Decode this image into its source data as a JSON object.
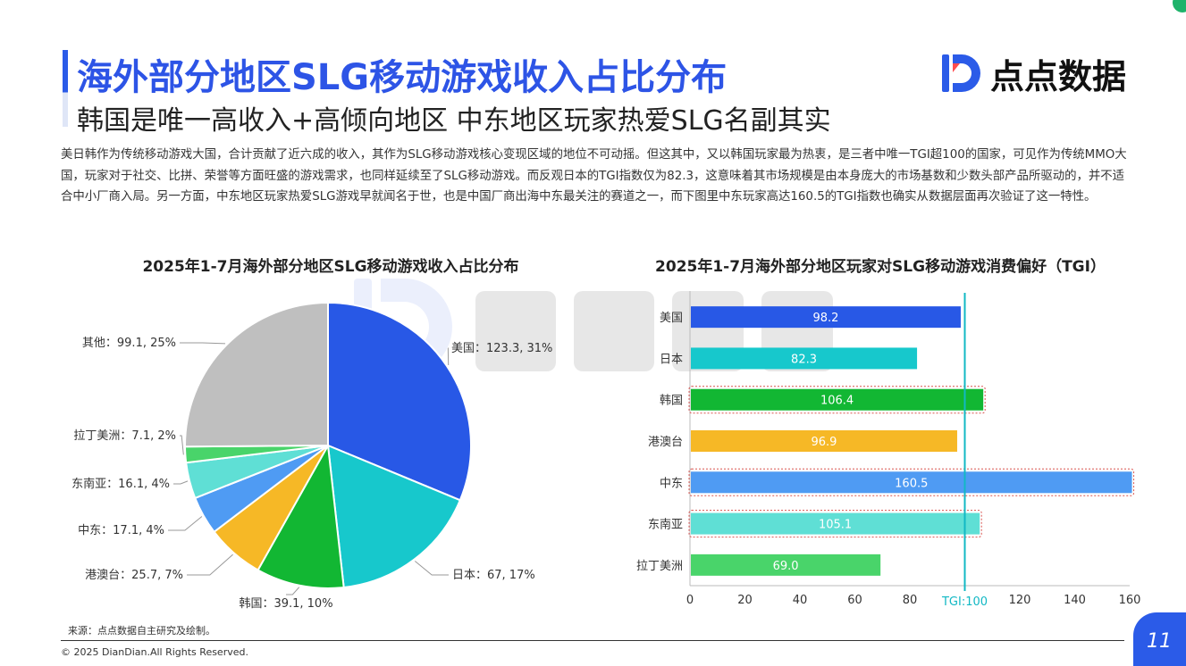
{
  "header": {
    "title": "海外部分地区SLG移动游戏收入占比分布",
    "subtitle": "韩国是唯一高收入+高倾向地区 中东地区玩家热爱SLG名副其实",
    "logo_text": "点点数据"
  },
  "paragraph": "美日韩作为传统移动游戏大国，合计贡献了近六成的收入，其作为SLG移动游戏核心变现区域的地位不可动摇。但这其中，又以韩国玩家最为热衷，是三者中唯一TGI超100的国家，可见作为传统MMO大国，玩家对于社交、比拼、荣誉等方面旺盛的游戏需求，也同样延续至了SLG移动游戏。而反观日本的TGI指数仅为82.3，这意味着其市场规模是由本身庞大的市场基数和少数头部产品所驱动的，并不适合中小厂商入局。另一方面，中东地区玩家热爱SLG游戏早就闻名于世，也是中国厂商出海中东最关注的赛道之一，而下图里中东玩家高达160.5的TGI指数也确实从数据层面再次验证了这一特性。",
  "colors": {
    "accent": "#2d54e6",
    "usa": "#2858e6",
    "japan": "#17c8cc",
    "korea": "#12b733",
    "hmt": "#f6b826",
    "mideast": "#4f9bf3",
    "sea": "#5fdfd5",
    "latam": "#49d46a",
    "other": "#bfbfbf",
    "tgi_line": "#12b8c4"
  },
  "chart_data": [
    {
      "type": "pie",
      "title": "2025年1-7月海外部分地区SLG移动游戏收入占比分布",
      "slices": [
        {
          "name": "美国",
          "value": 123.3,
          "percent": 31,
          "label": "美国：123.3, 31%"
        },
        {
          "name": "日本",
          "value": 67,
          "percent": 17,
          "label": "日本：67, 17%"
        },
        {
          "name": "韩国",
          "value": 39.1,
          "percent": 10,
          "label": "韩国：39.1, 10%"
        },
        {
          "name": "港澳台",
          "value": 25.7,
          "percent": 7,
          "label": "港澳台：25.7, 7%"
        },
        {
          "name": "中东",
          "value": 17.1,
          "percent": 4,
          "label": "中东：17.1, 4%"
        },
        {
          "name": "东南亚",
          "value": 16.1,
          "percent": 4,
          "label": "东南亚：16.1, 4%"
        },
        {
          "name": "拉丁美洲",
          "value": 7.1,
          "percent": 2,
          "label": "拉丁美洲：7.1, 2%"
        },
        {
          "name": "其他",
          "value": 99.1,
          "percent": 25,
          "label": "其他：99.1, 25%"
        }
      ]
    },
    {
      "type": "bar",
      "orientation": "horizontal",
      "title": "2025年1-7月海外部分地区玩家对SLG移动游戏消费偏好（TGI）",
      "categories": [
        "美国",
        "日本",
        "韩国",
        "港澳台",
        "中东",
        "东南亚",
        "拉丁美洲"
      ],
      "values": [
        98.2,
        82.3,
        106.4,
        96.9,
        160.5,
        105.1,
        69.0
      ],
      "value_labels": [
        "98.2",
        "82.3",
        "106.4",
        "96.9",
        "160.5",
        "105.1",
        "69.0"
      ],
      "highlighted": [
        false,
        false,
        true,
        false,
        true,
        true,
        false
      ],
      "xlim": [
        0,
        160
      ],
      "xticks": [
        "0",
        "20",
        "40",
        "60",
        "80",
        "100",
        "120",
        "140",
        "160"
      ],
      "reference_line": {
        "value": 100,
        "label": "TGI:100"
      }
    }
  ],
  "footer": {
    "source": "来源：点点数据自主研究及绘制。",
    "copyright": "© 2025 DianDian.All Rights Reserved.",
    "page_number": "11"
  }
}
